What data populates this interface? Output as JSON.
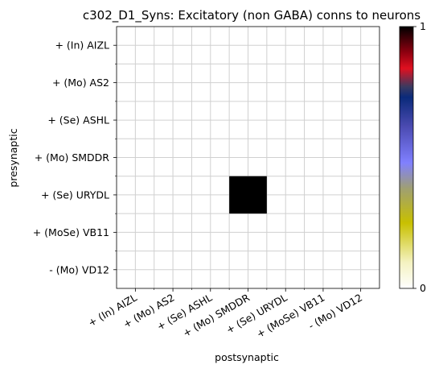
{
  "chart_data": {
    "type": "heatmap",
    "title": "c302_D1_Syns: Excitatory (non GABA) conns to neurons",
    "xlabel": "postsynaptic",
    "ylabel": "presynaptic",
    "x_categories": [
      "+ (In) AIZL",
      "+ (Mo) AS2",
      "+ (Se) ASHL",
      "+ (Mo) SMDDR",
      "+ (Se) URYDL",
      "+ (MoSe) VB11",
      "- (Mo) VD12"
    ],
    "y_categories": [
      "+ (In) AIZL",
      "+ (Mo) AS2",
      "+ (Se) ASHL",
      "+ (Mo) SMDDR",
      "+ (Se) URYDL",
      "+ (MoSe) VB11",
      "- (Mo) VD12"
    ],
    "values": [
      [
        0,
        0,
        0,
        0,
        0,
        0,
        0
      ],
      [
        0,
        0,
        0,
        0,
        0,
        0,
        0
      ],
      [
        0,
        0,
        0,
        0,
        0,
        0,
        0
      ],
      [
        0,
        0,
        0,
        0,
        0,
        0,
        0
      ],
      [
        0,
        0,
        0,
        1,
        0,
        0,
        0
      ],
      [
        0,
        0,
        0,
        0,
        0,
        0,
        0
      ],
      [
        0,
        0,
        0,
        0,
        0,
        0,
        0
      ]
    ],
    "colorbar": {
      "min": 0,
      "max": 1,
      "tick_labels": [
        "0",
        "1"
      ]
    },
    "colormap": [
      "#ffffff",
      "#c8c000",
      "#8080ff",
      "#0a2a7a",
      "#e01020",
      "#000000"
    ],
    "grid": true
  }
}
